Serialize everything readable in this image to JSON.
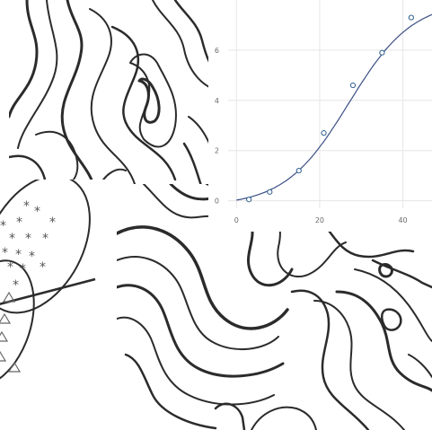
{
  "chart_data": {
    "type": "scatter",
    "x": [
      3,
      8,
      15,
      21,
      28,
      35,
      42
    ],
    "y": [
      0.05,
      0.35,
      1.2,
      2.7,
      4.6,
      5.9,
      7.3
    ],
    "xlim": [
      -2,
      47
    ],
    "ylim": [
      -0.3,
      8
    ],
    "xticks": [
      "0",
      "20",
      "40"
    ],
    "yticks": [
      "0",
      "2",
      "4",
      "6"
    ],
    "grid": true,
    "fit_curve": "sigmoid",
    "title": "",
    "xlabel": "",
    "ylabel": "",
    "colors": {
      "curve": "#3b4f85",
      "points": "#2f5f8f",
      "grid": "#e6e6e6"
    }
  },
  "decorations": {
    "contour_color": "#2b2b2b",
    "scatter_markers": [
      "star",
      "triangle"
    ]
  }
}
